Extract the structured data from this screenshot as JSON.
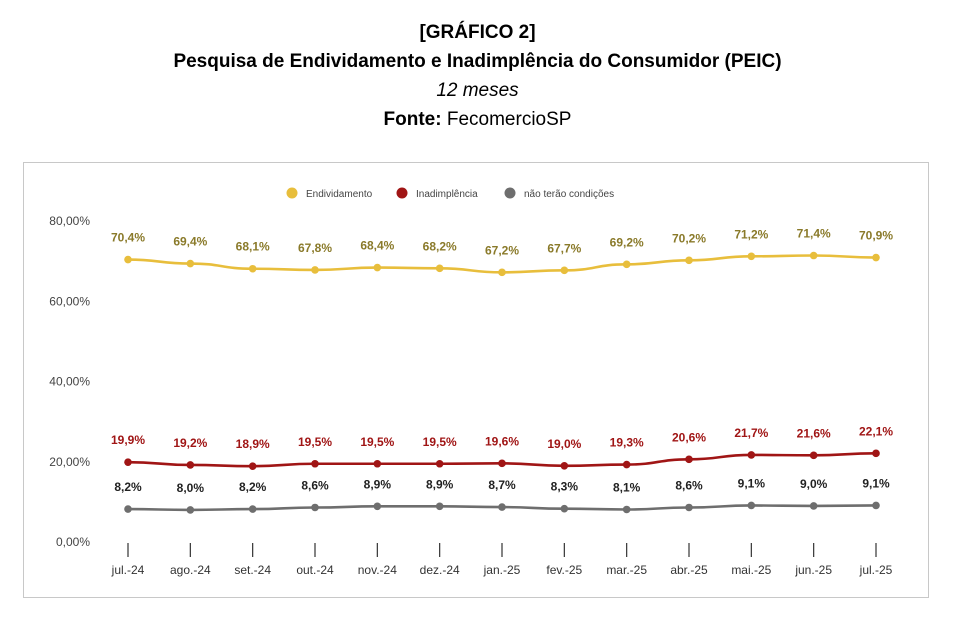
{
  "header": {
    "tag": "[GRÁFICO 2]",
    "title": "Pesquisa de Endividamento e Inadimplência do Consumidor (PEIC)",
    "subtitle": "12 meses",
    "source_label": "Fonte:",
    "source_value": "FecomercioSP"
  },
  "chart_data": {
    "type": "line",
    "categories": [
      "jul.-24",
      "ago.-24",
      "set.-24",
      "out.-24",
      "nov.-24",
      "dez.-24",
      "jan.-25",
      "fev.-25",
      "mar.-25",
      "abr.-25",
      "mai.-25",
      "jun.-25",
      "jul.-25"
    ],
    "ylim": [
      0,
      80
    ],
    "yticks": [
      "0,00%",
      "20,00%",
      "40,00%",
      "60,00%",
      "80,00%"
    ],
    "ytick_values": [
      0,
      20,
      40,
      60,
      80
    ],
    "legend_position": "top",
    "grid": false,
    "series": [
      {
        "name": "Endividamento",
        "color": "#e8be3c",
        "label_color": "#8a7a2a",
        "values": [
          70.4,
          69.4,
          68.1,
          67.8,
          68.4,
          68.2,
          67.2,
          67.7,
          69.2,
          70.2,
          71.2,
          71.4,
          70.9
        ],
        "labels": [
          "70,4%",
          "69,4%",
          "68,1%",
          "67,8%",
          "68,4%",
          "68,2%",
          "67,2%",
          "67,7%",
          "69,2%",
          "70,2%",
          "71,2%",
          "71,4%",
          "70,9%"
        ]
      },
      {
        "name": "Inadimplência",
        "color": "#a01515",
        "label_color": "#a01515",
        "values": [
          19.9,
          19.2,
          18.9,
          19.5,
          19.5,
          19.5,
          19.6,
          19.0,
          19.3,
          20.6,
          21.7,
          21.6,
          22.1
        ],
        "labels": [
          "19,9%",
          "19,2%",
          "18,9%",
          "19,5%",
          "19,5%",
          "19,5%",
          "19,6%",
          "19,0%",
          "19,3%",
          "20,6%",
          "21,7%",
          "21,6%",
          "22,1%"
        ]
      },
      {
        "name": "não terão condições",
        "color": "#6e6e6e",
        "label_color": "#222222",
        "values": [
          8.2,
          8.0,
          8.2,
          8.6,
          8.9,
          8.9,
          8.7,
          8.3,
          8.1,
          8.6,
          9.1,
          9.0,
          9.1
        ],
        "labels": [
          "8,2%",
          "8,0%",
          "8,2%",
          "8,6%",
          "8,9%",
          "8,9%",
          "8,7%",
          "8,3%",
          "8,1%",
          "8,6%",
          "9,1%",
          "9,0%",
          "9,1%"
        ]
      }
    ]
  }
}
